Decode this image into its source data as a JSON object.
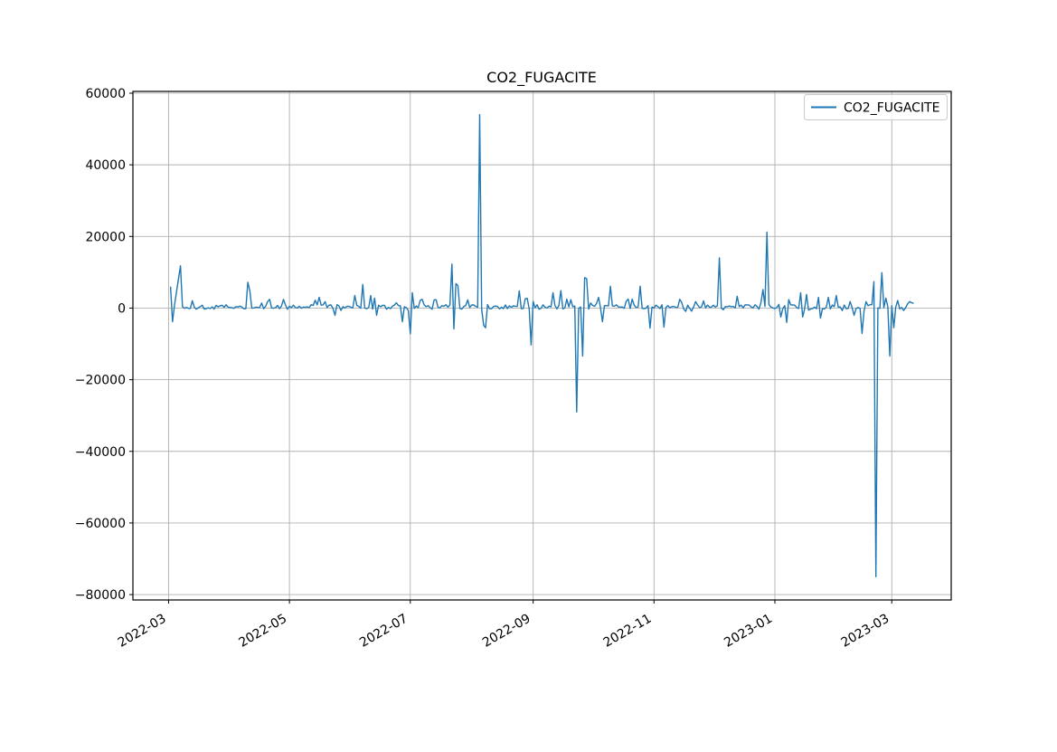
{
  "chart_data": {
    "type": "line",
    "title": "CO2_FUGACITE",
    "xlabel": "",
    "ylabel": "",
    "grid": true,
    "legend": {
      "position": "upper right",
      "entries": [
        {
          "label": "CO2_FUGACITE",
          "color": "#1f77b4"
        }
      ]
    },
    "colors": {
      "line": "#1f77b4",
      "grid": "#b0b0b0",
      "axis": "#000000",
      "background": "#ffffff",
      "legend_border": "#cccccc"
    },
    "ylim": [
      -81500,
      60500
    ],
    "y_ticks": [
      {
        "value": 60000,
        "label": "60000"
      },
      {
        "value": 40000,
        "label": "40000"
      },
      {
        "value": 20000,
        "label": "20000"
      },
      {
        "value": 0,
        "label": "0"
      },
      {
        "value": -20000,
        "label": "−20000"
      },
      {
        "value": -40000,
        "label": "−40000"
      },
      {
        "value": -60000,
        "label": "−60000"
      },
      {
        "value": -80000,
        "label": "−80000"
      }
    ],
    "xlim": [
      "2022-02-11",
      "2023-03-31"
    ],
    "x_ticks": [
      {
        "date": "2022-03-01",
        "label": "2022-03"
      },
      {
        "date": "2022-05-01",
        "label": "2022-05"
      },
      {
        "date": "2022-07-01",
        "label": "2022-07"
      },
      {
        "date": "2022-09-01",
        "label": "2022-09"
      },
      {
        "date": "2022-11-01",
        "label": "2022-11"
      },
      {
        "date": "2023-01-01",
        "label": "2023-01"
      },
      {
        "date": "2023-03-01",
        "label": "2023-03"
      }
    ],
    "series": [
      {
        "name": "CO2_FUGACITE",
        "start": "2022-03-02",
        "end": "2023-03-12",
        "frequency": "daily",
        "baseline": {
          "mean": 250,
          "noise_half_range": 650,
          "spike_chance": 0.12,
          "spike_extra_max": 1700,
          "seed": 1337
        },
        "spikes": [
          [
            "2022-03-02",
            6000
          ],
          [
            "2022-03-03",
            -3800
          ],
          [
            "2022-03-04",
            800
          ],
          [
            "2022-03-05",
            4500
          ],
          [
            "2022-03-06",
            8200
          ],
          [
            "2022-03-07",
            11800
          ],
          [
            "2022-03-08",
            400
          ],
          [
            "2022-04-10",
            7200
          ],
          [
            "2022-04-11",
            4800
          ],
          [
            "2022-04-20",
            1800
          ],
          [
            "2022-05-14",
            2200
          ],
          [
            "2022-05-16",
            3000
          ],
          [
            "2022-05-19",
            1800
          ],
          [
            "2022-05-24",
            -2000
          ],
          [
            "2022-06-03",
            3500
          ],
          [
            "2022-06-07",
            6600
          ],
          [
            "2022-06-11",
            3500
          ],
          [
            "2022-06-13",
            2800
          ],
          [
            "2022-06-14",
            -2000
          ],
          [
            "2022-06-27",
            -3800
          ],
          [
            "2022-07-01",
            -7200
          ],
          [
            "2022-07-02",
            4300
          ],
          [
            "2022-07-22",
            12300
          ],
          [
            "2022-07-23",
            -5800
          ],
          [
            "2022-07-24",
            6800
          ],
          [
            "2022-07-25",
            6300
          ],
          [
            "2022-08-05",
            54000
          ],
          [
            "2022-08-07",
            -4800
          ],
          [
            "2022-08-08",
            -5500
          ],
          [
            "2022-08-25",
            4800
          ],
          [
            "2022-08-28",
            2600
          ],
          [
            "2022-08-31",
            -10300
          ],
          [
            "2022-09-11",
            4300
          ],
          [
            "2022-09-15",
            4900
          ],
          [
            "2022-09-18",
            2500
          ],
          [
            "2022-09-23",
            -29000
          ],
          [
            "2022-09-26",
            -13400
          ],
          [
            "2022-09-27",
            8500
          ],
          [
            "2022-09-28",
            8200
          ],
          [
            "2022-10-04",
            3000
          ],
          [
            "2022-10-06",
            -3800
          ],
          [
            "2022-10-10",
            6100
          ],
          [
            "2022-10-19",
            2500
          ],
          [
            "2022-10-21",
            2500
          ],
          [
            "2022-10-25",
            6100
          ],
          [
            "2022-10-30",
            -5600
          ],
          [
            "2022-11-06",
            -5300
          ],
          [
            "2022-11-15",
            1500
          ],
          [
            "2022-11-22",
            1800
          ],
          [
            "2022-11-26",
            2000
          ],
          [
            "2022-12-04",
            14000
          ],
          [
            "2022-12-13",
            3300
          ],
          [
            "2022-12-26",
            5200
          ],
          [
            "2022-12-28",
            21200
          ],
          [
            "2023-01-04",
            -2500
          ],
          [
            "2023-01-07",
            -4000
          ],
          [
            "2023-01-14",
            4300
          ],
          [
            "2023-01-15",
            -2500
          ],
          [
            "2023-01-17",
            3800
          ],
          [
            "2023-01-23",
            3000
          ],
          [
            "2023-01-24",
            -2800
          ],
          [
            "2023-01-28",
            3000
          ],
          [
            "2023-02-01",
            3500
          ],
          [
            "2023-02-10",
            -2000
          ],
          [
            "2023-02-14",
            -7100
          ],
          [
            "2023-02-16",
            1800
          ],
          [
            "2023-02-20",
            7400
          ],
          [
            "2023-02-21",
            -75000
          ],
          [
            "2023-02-24",
            9900
          ],
          [
            "2023-02-26",
            2800
          ],
          [
            "2023-02-28",
            -13400
          ],
          [
            "2023-03-02",
            -5500
          ],
          [
            "2023-03-09",
            1200
          ],
          [
            "2023-03-10",
            1800
          ],
          [
            "2023-03-11",
            1500
          ],
          [
            "2023-03-12",
            1300
          ]
        ]
      }
    ]
  }
}
